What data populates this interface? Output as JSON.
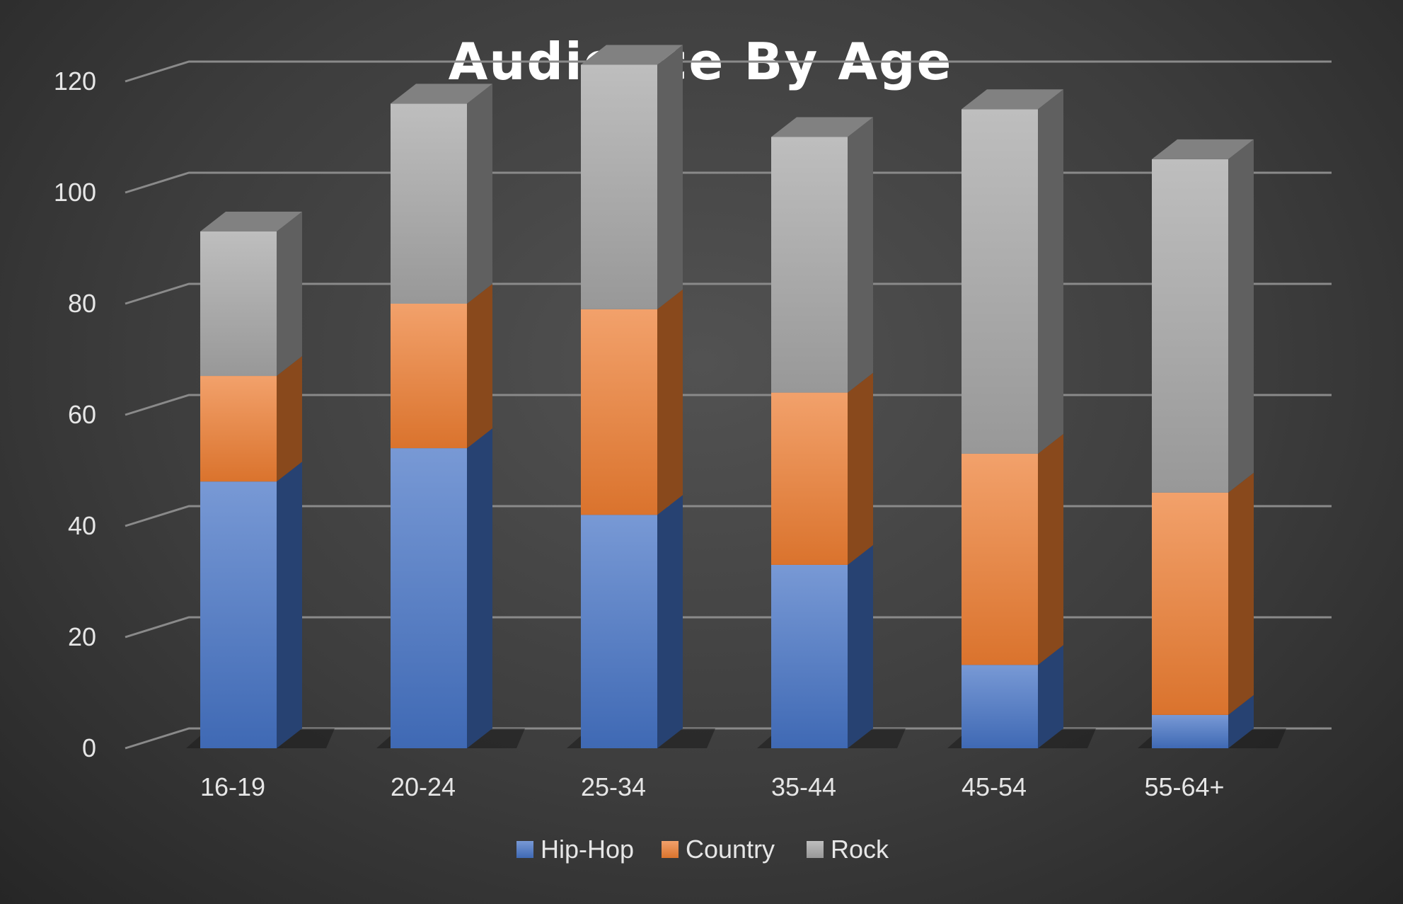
{
  "chart_data": {
    "type": "bar",
    "stacked": true,
    "style": "3d",
    "title": "Audience By Age",
    "xlabel": "",
    "ylabel": "",
    "categories": [
      "16-19",
      "20-24",
      "25-34",
      "35-44",
      "45-54",
      "55-64+"
    ],
    "series": [
      {
        "name": "Hip-Hop",
        "color": "#4472c4",
        "values": [
          48,
          54,
          42,
          33,
          15,
          6
        ]
      },
      {
        "name": "Country",
        "color": "#ed7d31",
        "values": [
          19,
          26,
          37,
          31,
          38,
          40
        ]
      },
      {
        "name": "Rock",
        "color": "#a5a5a5",
        "values": [
          26,
          36,
          44,
          46,
          62,
          60
        ]
      }
    ],
    "ylim": [
      0,
      140
    ],
    "yticks": [
      0,
      20,
      40,
      60,
      80,
      100,
      120,
      140
    ],
    "grid": true,
    "legend": "bottom"
  }
}
